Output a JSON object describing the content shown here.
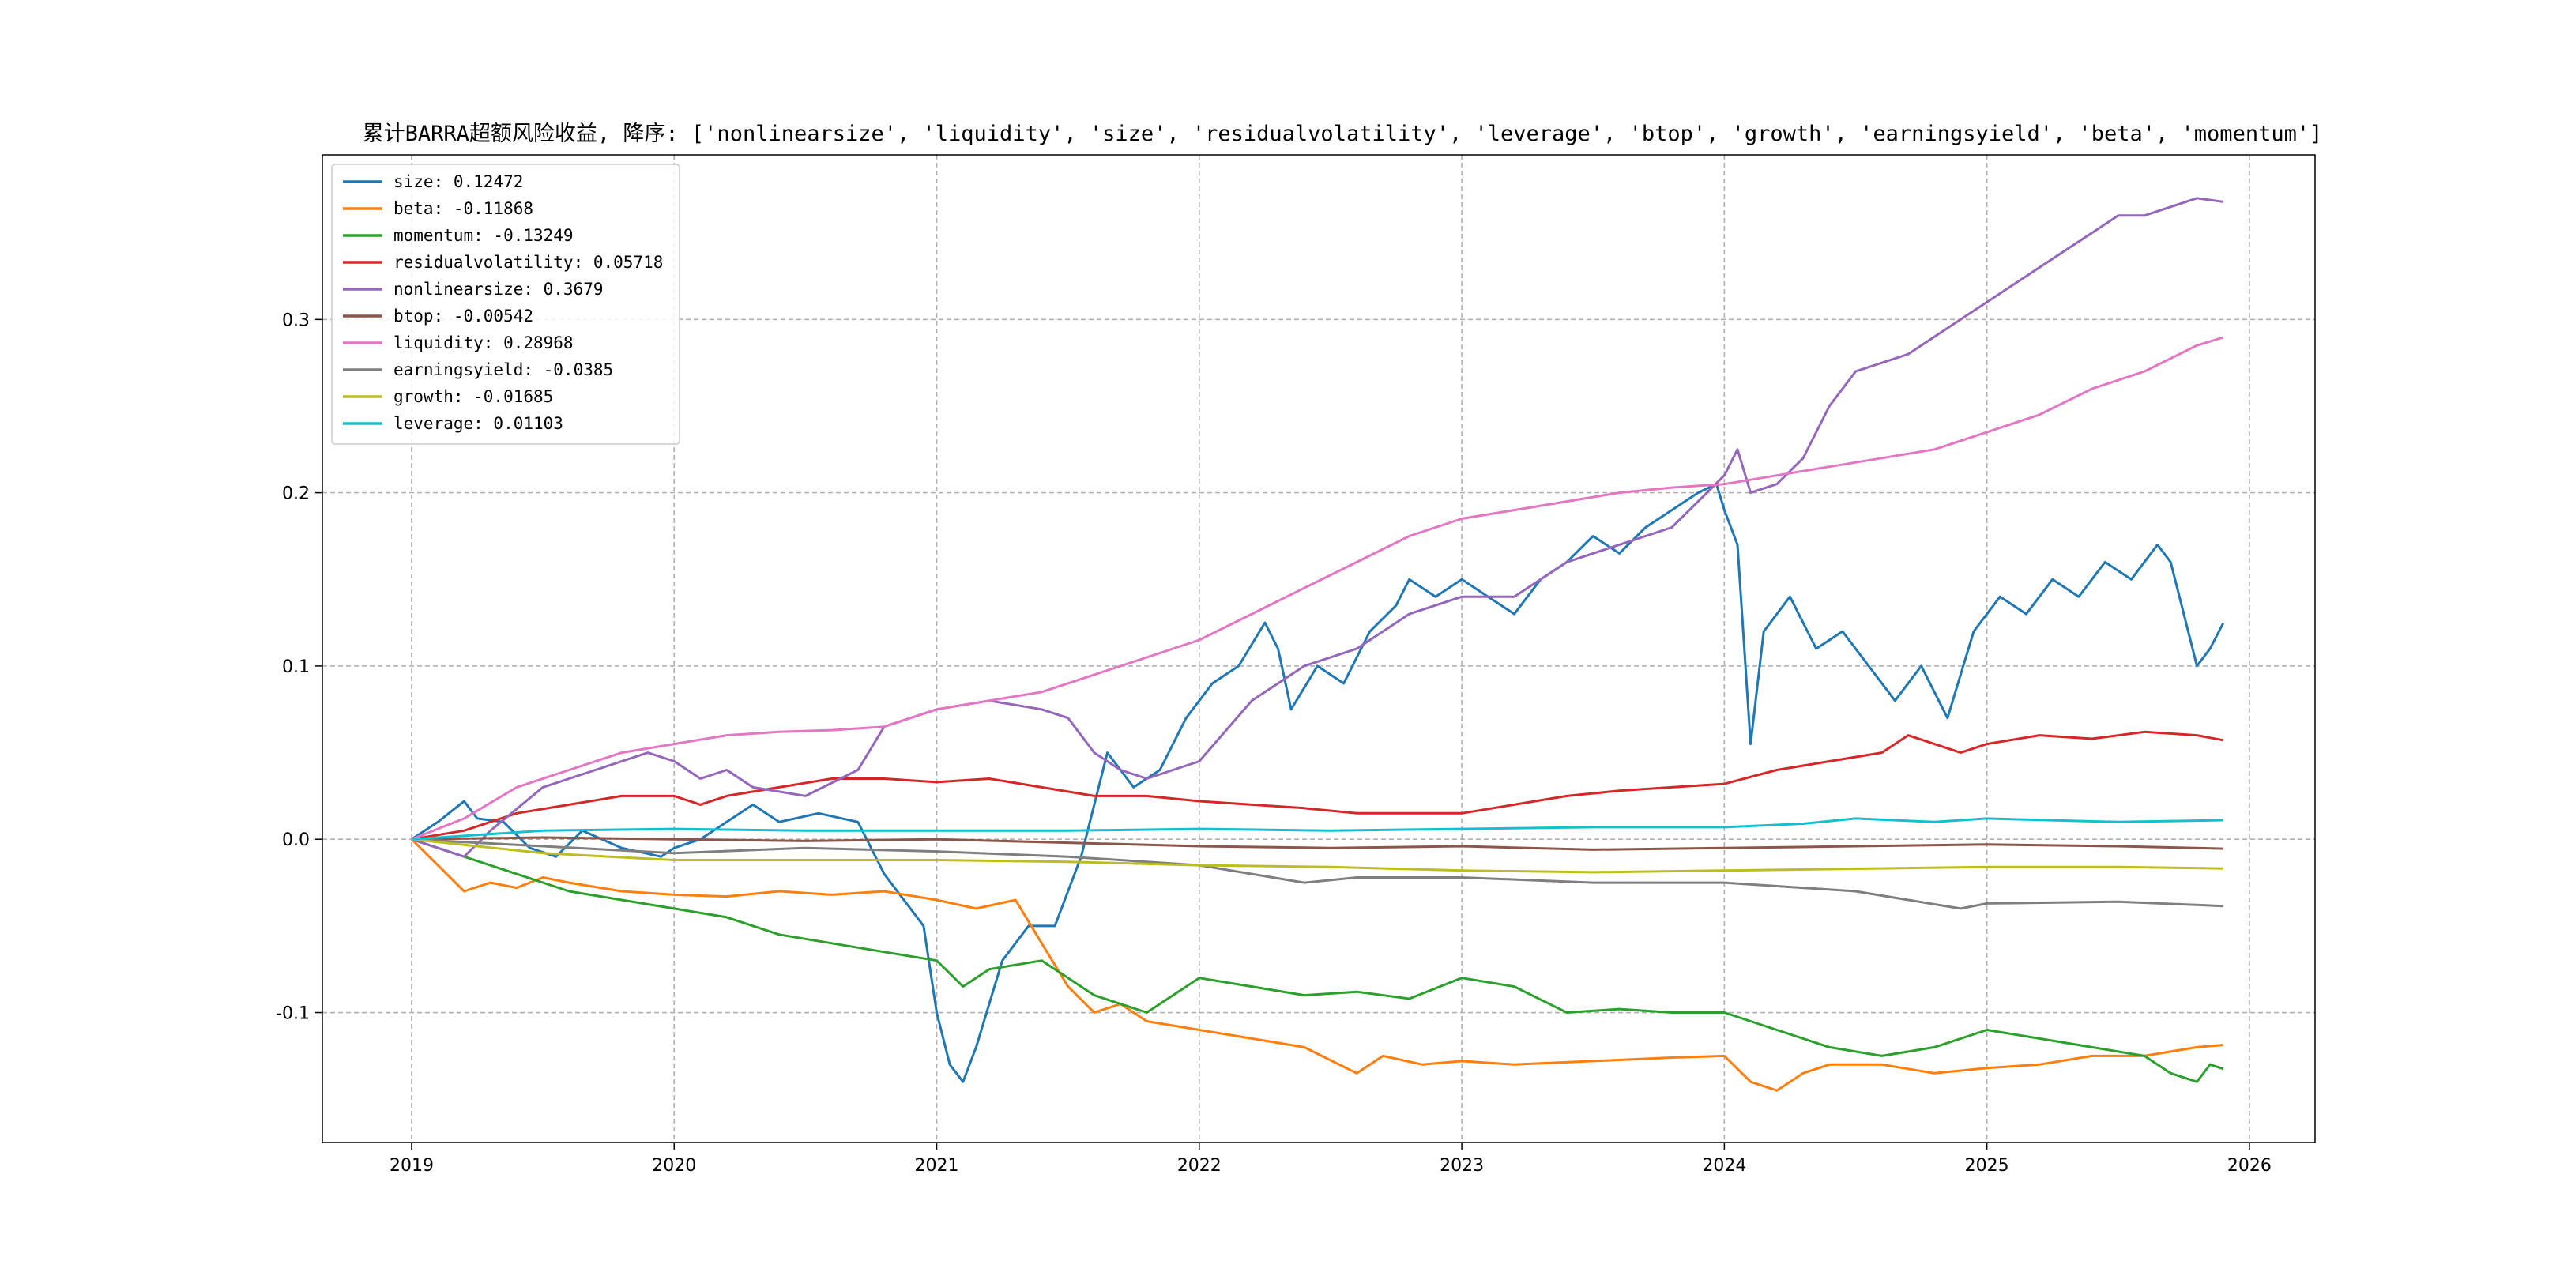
{
  "chart_data": {
    "type": "line",
    "title": "累计BARRA超额风险收益,  降序: ['nonlinearsize', 'liquidity', 'size', 'residualvolatility', 'leverage', 'btop', 'growth', 'earningsyield', 'beta', 'momentum']",
    "xlabel": "",
    "ylabel": "",
    "xlim": [
      2018.66,
      2026.25
    ],
    "ylim": [
      -0.175,
      0.395
    ],
    "x_ticks": [
      2019,
      2020,
      2021,
      2022,
      2023,
      2024,
      2025,
      2026
    ],
    "x_tick_labels": [
      "2019",
      "2020",
      "2021",
      "2022",
      "2023",
      "2024",
      "2025",
      "2026"
    ],
    "y_ticks": [
      -0.1,
      0.0,
      0.1,
      0.2,
      0.3
    ],
    "y_tick_labels": [
      "-0.1",
      "0.0",
      "0.1",
      "0.2",
      "0.3"
    ],
    "grid": true,
    "legend_position": "top-left",
    "series": [
      {
        "name": "size",
        "legend": "size: 0.12472",
        "color": "#1f77b4",
        "x": [
          2019.0,
          2019.1,
          2019.2,
          2019.25,
          2019.35,
          2019.45,
          2019.55,
          2019.65,
          2019.8,
          2019.95,
          2020.0,
          2020.1,
          2020.2,
          2020.3,
          2020.4,
          2020.55,
          2020.7,
          2020.8,
          2020.95,
          2021.0,
          2021.05,
          2021.1,
          2021.15,
          2021.25,
          2021.35,
          2021.45,
          2021.55,
          2021.65,
          2021.75,
          2021.85,
          2021.95,
          2022.05,
          2022.15,
          2022.25,
          2022.3,
          2022.35,
          2022.45,
          2022.55,
          2022.65,
          2022.75,
          2022.8,
          2022.9,
          2023.0,
          2023.1,
          2023.2,
          2023.3,
          2023.4,
          2023.5,
          2023.6,
          2023.7,
          2023.8,
          2023.9,
          2023.97,
          2024.0,
          2024.05,
          2024.1,
          2024.15,
          2024.25,
          2024.35,
          2024.45,
          2024.55,
          2024.65,
          2024.75,
          2024.85,
          2024.95,
          2025.05,
          2025.15,
          2025.25,
          2025.35,
          2025.45,
          2025.55,
          2025.65,
          2025.7,
          2025.75,
          2025.8,
          2025.85,
          2025.9
        ],
        "y": [
          0.0,
          0.01,
          0.022,
          0.012,
          0.01,
          -0.005,
          -0.01,
          0.005,
          -0.005,
          -0.01,
          -0.005,
          0.0,
          0.01,
          0.02,
          0.01,
          0.015,
          0.01,
          -0.02,
          -0.05,
          -0.1,
          -0.13,
          -0.14,
          -0.12,
          -0.07,
          -0.05,
          -0.05,
          -0.01,
          0.05,
          0.03,
          0.04,
          0.07,
          0.09,
          0.1,
          0.125,
          0.11,
          0.075,
          0.1,
          0.09,
          0.12,
          0.135,
          0.15,
          0.14,
          0.15,
          0.14,
          0.13,
          0.15,
          0.16,
          0.175,
          0.165,
          0.18,
          0.19,
          0.2,
          0.205,
          0.19,
          0.17,
          0.055,
          0.12,
          0.14,
          0.11,
          0.12,
          0.1,
          0.08,
          0.1,
          0.07,
          0.12,
          0.14,
          0.13,
          0.15,
          0.14,
          0.16,
          0.15,
          0.17,
          0.16,
          0.13,
          0.1,
          0.11,
          0.12472
        ]
      },
      {
        "name": "beta",
        "legend": "beta: -0.11868",
        "color": "#ff7f0e",
        "x": [
          2019.0,
          2019.1,
          2019.2,
          2019.3,
          2019.4,
          2019.5,
          2019.6,
          2019.8,
          2020.0,
          2020.2,
          2020.4,
          2020.6,
          2020.8,
          2021.0,
          2021.15,
          2021.3,
          2021.4,
          2021.5,
          2021.6,
          2021.7,
          2021.8,
          2022.0,
          2022.2,
          2022.4,
          2022.6,
          2022.7,
          2022.85,
          2023.0,
          2023.2,
          2023.5,
          2023.8,
          2024.0,
          2024.1,
          2024.2,
          2024.3,
          2024.4,
          2024.6,
          2024.8,
          2025.0,
          2025.2,
          2025.4,
          2025.6,
          2025.8,
          2025.9
        ],
        "y": [
          0.0,
          -0.015,
          -0.03,
          -0.025,
          -0.028,
          -0.022,
          -0.025,
          -0.03,
          -0.032,
          -0.033,
          -0.03,
          -0.032,
          -0.03,
          -0.035,
          -0.04,
          -0.035,
          -0.06,
          -0.085,
          -0.1,
          -0.095,
          -0.105,
          -0.11,
          -0.115,
          -0.12,
          -0.135,
          -0.125,
          -0.13,
          -0.128,
          -0.13,
          -0.128,
          -0.126,
          -0.125,
          -0.14,
          -0.145,
          -0.135,
          -0.13,
          -0.13,
          -0.135,
          -0.132,
          -0.13,
          -0.125,
          -0.125,
          -0.12,
          -0.11868
        ]
      },
      {
        "name": "momentum",
        "legend": "momentum: -0.13249",
        "color": "#2ca02c",
        "x": [
          2019.0,
          2019.2,
          2019.4,
          2019.6,
          2019.8,
          2020.0,
          2020.2,
          2020.4,
          2020.6,
          2020.8,
          2021.0,
          2021.1,
          2021.2,
          2021.4,
          2021.6,
          2021.8,
          2022.0,
          2022.2,
          2022.4,
          2022.6,
          2022.8,
          2023.0,
          2023.2,
          2023.4,
          2023.6,
          2023.8,
          2024.0,
          2024.2,
          2024.4,
          2024.6,
          2024.8,
          2025.0,
          2025.2,
          2025.4,
          2025.6,
          2025.7,
          2025.8,
          2025.85,
          2025.9
        ],
        "y": [
          0.0,
          -0.01,
          -0.02,
          -0.03,
          -0.035,
          -0.04,
          -0.045,
          -0.055,
          -0.06,
          -0.065,
          -0.07,
          -0.085,
          -0.075,
          -0.07,
          -0.09,
          -0.1,
          -0.08,
          -0.085,
          -0.09,
          -0.088,
          -0.092,
          -0.08,
          -0.085,
          -0.1,
          -0.098,
          -0.1,
          -0.1,
          -0.11,
          -0.12,
          -0.125,
          -0.12,
          -0.11,
          -0.115,
          -0.12,
          -0.125,
          -0.135,
          -0.14,
          -0.13,
          -0.13249
        ]
      },
      {
        "name": "residualvolatility",
        "legend": "residualvolatility: 0.05718",
        "color": "#d62728",
        "x": [
          2019.0,
          2019.2,
          2019.4,
          2019.6,
          2019.8,
          2020.0,
          2020.1,
          2020.2,
          2020.4,
          2020.6,
          2020.8,
          2021.0,
          2021.2,
          2021.4,
          2021.6,
          2021.8,
          2022.0,
          2022.2,
          2022.4,
          2022.6,
          2022.8,
          2023.0,
          2023.2,
          2023.4,
          2023.6,
          2023.8,
          2024.0,
          2024.2,
          2024.4,
          2024.6,
          2024.7,
          2024.8,
          2024.9,
          2025.0,
          2025.2,
          2025.4,
          2025.6,
          2025.8,
          2025.9
        ],
        "y": [
          0.0,
          0.005,
          0.015,
          0.02,
          0.025,
          0.025,
          0.02,
          0.025,
          0.03,
          0.035,
          0.035,
          0.033,
          0.035,
          0.03,
          0.025,
          0.025,
          0.022,
          0.02,
          0.018,
          0.015,
          0.015,
          0.015,
          0.02,
          0.025,
          0.028,
          0.03,
          0.032,
          0.04,
          0.045,
          0.05,
          0.06,
          0.055,
          0.05,
          0.055,
          0.06,
          0.058,
          0.062,
          0.06,
          0.05718
        ]
      },
      {
        "name": "nonlinearsize",
        "legend": "nonlinearsize: 0.3679",
        "color": "#9467bd",
        "x": [
          2019.0,
          2019.1,
          2019.2,
          2019.3,
          2019.5,
          2019.7,
          2019.9,
          2020.0,
          2020.1,
          2020.2,
          2020.3,
          2020.5,
          2020.7,
          2020.8,
          2021.0,
          2021.2,
          2021.4,
          2021.5,
          2021.6,
          2021.7,
          2021.8,
          2022.0,
          2022.2,
          2022.3,
          2022.4,
          2022.6,
          2022.8,
          2023.0,
          2023.2,
          2023.3,
          2023.4,
          2023.6,
          2023.8,
          2024.0,
          2024.05,
          2024.1,
          2024.2,
          2024.3,
          2024.4,
          2024.5,
          2024.7,
          2024.9,
          2025.0,
          2025.2,
          2025.4,
          2025.5,
          2025.6,
          2025.7,
          2025.8,
          2025.9
        ],
        "y": [
          0.0,
          -0.005,
          -0.01,
          0.005,
          0.03,
          0.04,
          0.05,
          0.045,
          0.035,
          0.04,
          0.03,
          0.025,
          0.04,
          0.065,
          0.075,
          0.08,
          0.075,
          0.07,
          0.05,
          0.04,
          0.035,
          0.045,
          0.08,
          0.09,
          0.1,
          0.11,
          0.13,
          0.14,
          0.14,
          0.15,
          0.16,
          0.17,
          0.18,
          0.21,
          0.225,
          0.2,
          0.205,
          0.22,
          0.25,
          0.27,
          0.28,
          0.3,
          0.31,
          0.33,
          0.35,
          0.36,
          0.36,
          0.365,
          0.37,
          0.3679
        ]
      },
      {
        "name": "btop",
        "legend": "btop: -0.00542",
        "color": "#8c564b",
        "x": [
          2019.0,
          2019.5,
          2020.0,
          2020.5,
          2021.0,
          2021.5,
          2022.0,
          2022.5,
          2023.0,
          2023.5,
          2024.0,
          2024.5,
          2025.0,
          2025.5,
          2025.9
        ],
        "y": [
          0.0,
          0.001,
          0.0,
          -0.001,
          0.0,
          -0.002,
          -0.004,
          -0.005,
          -0.004,
          -0.006,
          -0.005,
          -0.004,
          -0.003,
          -0.004,
          -0.00542
        ]
      },
      {
        "name": "liquidity",
        "legend": "liquidity: 0.28968",
        "color": "#e377c2",
        "x": [
          2019.0,
          2019.2,
          2019.4,
          2019.6,
          2019.8,
          2020.0,
          2020.2,
          2020.4,
          2020.6,
          2020.8,
          2021.0,
          2021.2,
          2021.4,
          2021.6,
          2021.8,
          2022.0,
          2022.2,
          2022.4,
          2022.6,
          2022.8,
          2023.0,
          2023.2,
          2023.4,
          2023.6,
          2023.8,
          2024.0,
          2024.2,
          2024.4,
          2024.6,
          2024.8,
          2025.0,
          2025.2,
          2025.4,
          2025.6,
          2025.8,
          2025.9
        ],
        "y": [
          0.0,
          0.012,
          0.03,
          0.04,
          0.05,
          0.055,
          0.06,
          0.062,
          0.063,
          0.065,
          0.075,
          0.08,
          0.085,
          0.095,
          0.105,
          0.115,
          0.13,
          0.145,
          0.16,
          0.175,
          0.185,
          0.19,
          0.195,
          0.2,
          0.203,
          0.205,
          0.21,
          0.215,
          0.22,
          0.225,
          0.235,
          0.245,
          0.26,
          0.27,
          0.285,
          0.28968
        ]
      },
      {
        "name": "earningsyield",
        "legend": "earningsyield: -0.0385",
        "color": "#7f7f7f",
        "x": [
          2019.0,
          2019.5,
          2020.0,
          2020.5,
          2021.0,
          2021.5,
          2022.0,
          2022.2,
          2022.4,
          2022.6,
          2023.0,
          2023.5,
          2024.0,
          2024.5,
          2024.9,
          2025.0,
          2025.5,
          2025.9
        ],
        "y": [
          0.0,
          -0.004,
          -0.008,
          -0.005,
          -0.007,
          -0.01,
          -0.015,
          -0.02,
          -0.025,
          -0.022,
          -0.022,
          -0.025,
          -0.025,
          -0.03,
          -0.04,
          -0.037,
          -0.036,
          -0.0385
        ]
      },
      {
        "name": "growth",
        "legend": "growth: -0.01685",
        "color": "#bcbd22",
        "x": [
          2019.0,
          2019.5,
          2020.0,
          2020.5,
          2021.0,
          2021.5,
          2022.0,
          2022.5,
          2023.0,
          2023.5,
          2024.0,
          2024.5,
          2025.0,
          2025.5,
          2025.9
        ],
        "y": [
          0.0,
          -0.008,
          -0.012,
          -0.012,
          -0.012,
          -0.013,
          -0.015,
          -0.016,
          -0.018,
          -0.019,
          -0.018,
          -0.017,
          -0.016,
          -0.016,
          -0.01685
        ]
      },
      {
        "name": "leverage",
        "legend": "leverage: 0.01103",
        "color": "#17becf",
        "x": [
          2019.0,
          2019.5,
          2020.0,
          2020.5,
          2021.0,
          2021.5,
          2022.0,
          2022.5,
          2023.0,
          2023.5,
          2024.0,
          2024.3,
          2024.5,
          2024.8,
          2025.0,
          2025.5,
          2025.9
        ],
        "y": [
          0.0,
          0.005,
          0.006,
          0.005,
          0.005,
          0.005,
          0.006,
          0.005,
          0.006,
          0.007,
          0.007,
          0.009,
          0.012,
          0.01,
          0.012,
          0.01,
          0.01103
        ]
      }
    ]
  }
}
